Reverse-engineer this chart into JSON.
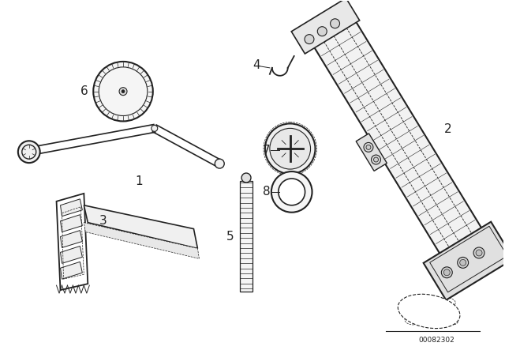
{
  "background_color": "#ffffff",
  "line_color": "#222222",
  "line_width": 0.9,
  "label_fontsize": 10,
  "watermark_text": "00082302",
  "fig_width": 6.4,
  "fig_height": 4.48,
  "dpi": 100
}
